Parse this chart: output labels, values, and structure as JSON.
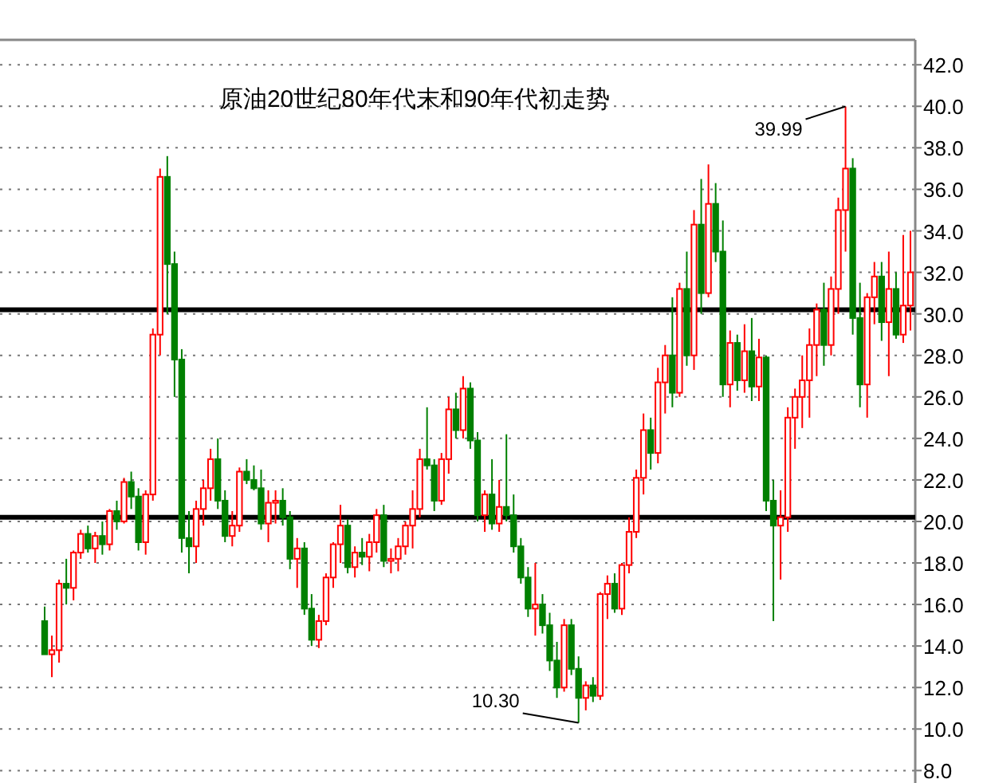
{
  "chart_data": {
    "type": "candlestick",
    "title": "原油20世纪80年代末和90年代初走势",
    "categories": [
      null,
      null,
      null,
      null,
      null,
      null,
      null,
      null,
      null,
      null,
      null,
      null,
      null,
      null,
      null,
      null,
      null,
      null,
      null,
      null,
      null,
      null,
      null,
      null,
      null,
      null,
      null,
      null,
      null,
      null,
      null,
      null,
      null,
      null,
      null,
      null,
      null,
      null,
      null,
      null,
      null,
      null,
      null,
      null,
      null,
      null,
      null,
      null,
      null,
      null,
      null,
      null,
      null,
      null,
      null,
      null,
      null,
      null,
      null,
      null,
      null,
      null,
      null,
      null,
      null,
      null,
      null,
      null,
      null,
      null,
      null,
      null,
      null,
      null,
      null,
      null,
      null,
      null,
      null,
      null,
      null,
      null,
      null,
      null,
      null,
      null,
      null,
      null,
      null,
      null,
      null,
      null,
      null,
      null,
      null,
      null,
      null,
      null,
      null,
      null,
      null,
      null,
      null,
      null,
      null,
      null,
      null,
      null,
      null,
      null,
      null,
      null,
      null,
      null,
      null,
      null,
      null,
      null,
      null,
      null,
      null
    ],
    "ohlc": [
      [
        15.2,
        15.9,
        13.6,
        13.6
      ],
      [
        13.6,
        14.5,
        12.5,
        13.8
      ],
      [
        13.8,
        17.2,
        13.2,
        17.0
      ],
      [
        17.0,
        18.2,
        16.0,
        16.8
      ],
      [
        16.8,
        18.6,
        16.2,
        18.5
      ],
      [
        18.5,
        19.6,
        18.2,
        19.4
      ],
      [
        19.4,
        19.8,
        18.5,
        18.7
      ],
      [
        18.7,
        19.5,
        18.0,
        19.3
      ],
      [
        19.3,
        20.0,
        18.4,
        18.9
      ],
      [
        18.9,
        20.6,
        18.6,
        20.5
      ],
      [
        20.5,
        21.0,
        19.6,
        20.0
      ],
      [
        20.0,
        22.1,
        19.9,
        21.9
      ],
      [
        21.9,
        22.4,
        20.6,
        21.2
      ],
      [
        21.2,
        21.6,
        18.6,
        19.0
      ],
      [
        19.0,
        21.5,
        18.4,
        21.3
      ],
      [
        21.3,
        29.3,
        21.0,
        29.0
      ],
      [
        29.0,
        37.0,
        28.0,
        36.6
      ],
      [
        36.6,
        37.6,
        30.0,
        32.4
      ],
      [
        32.4,
        33.0,
        26.0,
        27.8
      ],
      [
        27.8,
        28.3,
        18.5,
        19.2
      ],
      [
        19.2,
        20.5,
        17.5,
        18.8
      ],
      [
        18.8,
        21.0,
        18.0,
        20.6
      ],
      [
        20.6,
        22.0,
        19.8,
        21.6
      ],
      [
        21.6,
        23.5,
        21.0,
        23.0
      ],
      [
        23.0,
        24.0,
        20.6,
        21.0
      ],
      [
        21.0,
        21.5,
        19.0,
        19.3
      ],
      [
        19.3,
        20.5,
        18.8,
        19.8
      ],
      [
        19.8,
        22.6,
        19.5,
        22.4
      ],
      [
        22.4,
        23.0,
        21.8,
        22.0
      ],
      [
        22.0,
        22.7,
        21.5,
        21.6
      ],
      [
        21.6,
        22.5,
        19.6,
        19.9
      ],
      [
        19.9,
        21.5,
        19.0,
        20.9
      ],
      [
        20.9,
        21.5,
        19.9,
        21.0
      ],
      [
        21.0,
        21.6,
        19.8,
        20.2
      ],
      [
        20.2,
        20.5,
        17.7,
        18.2
      ],
      [
        18.2,
        19.2,
        16.8,
        18.7
      ],
      [
        18.7,
        19.0,
        15.5,
        15.8
      ],
      [
        15.8,
        16.5,
        14.0,
        14.3
      ],
      [
        14.3,
        15.5,
        13.9,
        15.2
      ],
      [
        15.2,
        17.5,
        15.0,
        17.3
      ],
      [
        17.3,
        19.0,
        16.8,
        18.9
      ],
      [
        18.9,
        20.8,
        18.0,
        19.8
      ],
      [
        19.8,
        20.1,
        17.5,
        17.8
      ],
      [
        17.8,
        18.8,
        17.3,
        18.5
      ],
      [
        18.5,
        19.2,
        17.9,
        18.3
      ],
      [
        18.3,
        19.4,
        17.6,
        19.0
      ],
      [
        19.0,
        20.6,
        18.5,
        20.3
      ],
      [
        20.3,
        20.8,
        17.8,
        18.1
      ],
      [
        18.1,
        18.7,
        17.5,
        18.2
      ],
      [
        18.2,
        19.2,
        17.6,
        18.8
      ],
      [
        18.8,
        20.0,
        18.4,
        19.8
      ],
      [
        19.8,
        21.5,
        18.7,
        20.6
      ],
      [
        20.6,
        23.5,
        20.2,
        23.0
      ],
      [
        23.0,
        25.5,
        22.5,
        22.7
      ],
      [
        22.7,
        23.0,
        20.5,
        21.0
      ],
      [
        21.0,
        23.3,
        20.8,
        23.0
      ],
      [
        23.0,
        26.0,
        22.3,
        25.4
      ],
      [
        25.4,
        26.2,
        24.0,
        24.4
      ],
      [
        24.4,
        27.0,
        24.0,
        26.4
      ],
      [
        26.4,
        26.7,
        23.5,
        23.9
      ],
      [
        23.9,
        24.3,
        20.0,
        20.3
      ],
      [
        20.3,
        21.5,
        19.5,
        21.3
      ],
      [
        21.3,
        23.0,
        19.6,
        19.9
      ],
      [
        19.9,
        22.0,
        19.5,
        20.7
      ],
      [
        20.7,
        24.2,
        20.0,
        20.3
      ],
      [
        20.3,
        21.3,
        18.5,
        18.8
      ],
      [
        18.8,
        19.2,
        17.0,
        17.3
      ],
      [
        17.3,
        17.8,
        15.4,
        15.8
      ],
      [
        15.8,
        18.0,
        14.5,
        16.0
      ],
      [
        16.0,
        16.5,
        14.6,
        15.0
      ],
      [
        15.0,
        15.6,
        12.8,
        13.3
      ],
      [
        13.3,
        14.2,
        11.5,
        12.0
      ],
      [
        12.0,
        15.3,
        11.8,
        15.0
      ],
      [
        15.0,
        15.3,
        12.6,
        12.9
      ],
      [
        12.9,
        13.5,
        10.3,
        11.5
      ],
      [
        11.5,
        12.3,
        10.9,
        12.1
      ],
      [
        12.1,
        12.5,
        11.3,
        11.6
      ],
      [
        11.6,
        16.6,
        11.4,
        16.5
      ],
      [
        16.5,
        17.4,
        15.3,
        17.0
      ],
      [
        17.0,
        17.5,
        15.6,
        15.8
      ],
      [
        15.8,
        18.0,
        15.5,
        17.9
      ],
      [
        17.9,
        20.2,
        17.5,
        19.5
      ],
      [
        19.5,
        22.5,
        19.2,
        22.1
      ],
      [
        22.1,
        25.2,
        21.3,
        24.4
      ],
      [
        24.4,
        25.0,
        22.5,
        23.3
      ],
      [
        23.3,
        27.4,
        22.8,
        26.7
      ],
      [
        26.7,
        28.5,
        25.2,
        28.0
      ],
      [
        28.0,
        30.8,
        25.5,
        26.2
      ],
      [
        26.2,
        31.5,
        26.0,
        31.2
      ],
      [
        31.2,
        33.0,
        27.5,
        28.0
      ],
      [
        28.0,
        35.0,
        27.3,
        34.3
      ],
      [
        34.3,
        36.5,
        30.0,
        31.0
      ],
      [
        31.0,
        37.2,
        30.8,
        35.3
      ],
      [
        35.3,
        36.3,
        32.5,
        33.0
      ],
      [
        33.0,
        34.5,
        26.0,
        26.6
      ],
      [
        26.6,
        29.2,
        25.5,
        28.6
      ],
      [
        28.6,
        29.0,
        26.3,
        26.8
      ],
      [
        26.8,
        29.5,
        26.2,
        28.2
      ],
      [
        28.2,
        29.8,
        25.8,
        26.5
      ],
      [
        26.5,
        28.8,
        25.8,
        27.9
      ],
      [
        27.9,
        28.0,
        20.5,
        21.0
      ],
      [
        21.0,
        22.0,
        15.2,
        19.8
      ],
      [
        19.8,
        21.5,
        17.2,
        20.2
      ],
      [
        20.2,
        25.5,
        19.5,
        25.0
      ],
      [
        25.0,
        26.4,
        23.5,
        26.0
      ],
      [
        26.0,
        28.0,
        24.5,
        26.8
      ],
      [
        26.8,
        29.3,
        25.0,
        28.5
      ],
      [
        28.5,
        30.5,
        27.0,
        30.2
      ],
      [
        30.2,
        31.5,
        27.5,
        28.5
      ],
      [
        28.5,
        31.8,
        28.0,
        31.2
      ],
      [
        31.2,
        35.6,
        30.0,
        35.0
      ],
      [
        35.0,
        39.99,
        33.0,
        37.0
      ],
      [
        37.0,
        37.5,
        29.0,
        29.8
      ],
      [
        29.8,
        31.5,
        25.5,
        26.6
      ],
      [
        26.6,
        31.0,
        25.0,
        30.8
      ],
      [
        30.8,
        32.5,
        29.5,
        31.8
      ],
      [
        31.8,
        32.5,
        28.7,
        29.6
      ],
      [
        29.6,
        33.0,
        27.0,
        31.2
      ],
      [
        31.2,
        32.0,
        28.8,
        29.0
      ],
      [
        29.0,
        33.8,
        28.6,
        30.4
      ],
      [
        30.4,
        34.0,
        29.2,
        32.0
      ]
    ],
    "ylim": [
      7.4,
      43.2
    ],
    "yticks": [
      {
        "value": 8,
        "label": "8.0"
      },
      {
        "value": 10,
        "label": "10.0"
      },
      {
        "value": 12,
        "label": "12.0"
      },
      {
        "value": 14,
        "label": "14.0"
      },
      {
        "value": 16,
        "label": "16.0"
      },
      {
        "value": 18,
        "label": "18.0"
      },
      {
        "value": 20,
        "label": "20.0"
      },
      {
        "value": 22,
        "label": "22.0"
      },
      {
        "value": 24,
        "label": "24.0"
      },
      {
        "value": 26,
        "label": "26.0"
      },
      {
        "value": 28,
        "label": "28.0"
      },
      {
        "value": 30,
        "label": "30.0"
      },
      {
        "value": 32,
        "label": "32.0"
      },
      {
        "value": 34,
        "label": "34.0"
      },
      {
        "value": 36,
        "label": "36.0"
      },
      {
        "value": 38,
        "label": "38.0"
      },
      {
        "value": 40,
        "label": "40.0"
      },
      {
        "value": 42,
        "label": "42.0"
      }
    ],
    "grid": "y",
    "ref_lines": [
      {
        "axis": "y",
        "value": 30.2,
        "color": "#000000"
      },
      {
        "axis": "y",
        "value": 20.2,
        "color": "#000000"
      }
    ],
    "annotations": [
      "39.99",
      "10.30"
    ]
  }
}
